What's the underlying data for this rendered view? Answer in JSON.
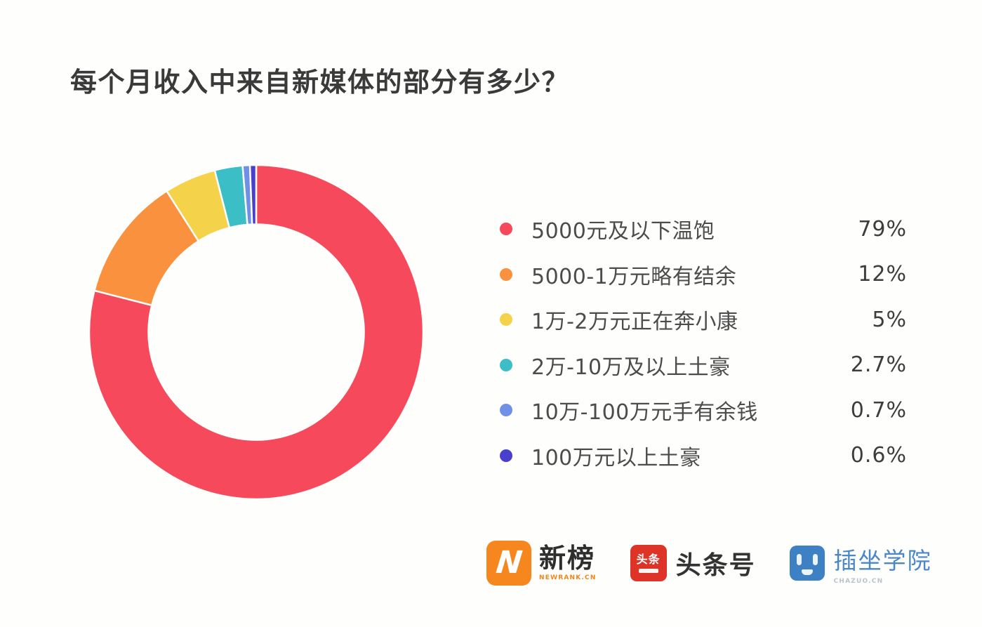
{
  "title": "每个月收入中来自新媒体的部分有多少？",
  "chart_data": {
    "type": "pie",
    "subtype": "donut",
    "title": "每个月收入中来自新媒体的部分有多少？",
    "start_angle_deg": -90,
    "direction": "clockwise",
    "inner_radius_ratio": 0.645,
    "legend_position": "right",
    "categories": [
      "5000元及以下温饱",
      "5000-1万元略有结余",
      "1万-2万元正在奔小康",
      "2万-10万及以上土豪",
      "10万-100万元手有余钱",
      "100万元以上土豪"
    ],
    "values": [
      79,
      12,
      5,
      2.7,
      0.7,
      0.6
    ],
    "series": [
      {
        "label": "5000元及以下温饱",
        "value": 79,
        "display": "79%",
        "color": "#f64a5c"
      },
      {
        "label": "5000-1万元略有结余",
        "value": 12,
        "display": "12%",
        "color": "#f9913f"
      },
      {
        "label": "1万-2万元正在奔小康",
        "value": 5,
        "display": "5%",
        "color": "#f4d34a"
      },
      {
        "label": "2万-10万及以上土豪",
        "value": 2.7,
        "display": "2.7%",
        "color": "#3cbec6"
      },
      {
        "label": "10万-100万元手有余钱",
        "value": 0.7,
        "display": "0.7%",
        "color": "#7090e8"
      },
      {
        "label": "100万元以上土豪",
        "value": 0.6,
        "display": "0.6%",
        "color": "#4840cc"
      }
    ]
  },
  "footer": {
    "logos": [
      {
        "id": "newrank",
        "mark_letter": "N",
        "title": "新榜",
        "subtitle": "NEWRANK.CN",
        "brand_color": "#f6871f",
        "title_color": "#2e2e2e"
      },
      {
        "id": "toutiao",
        "mark_chars": "头条",
        "title": "头条号",
        "brand_color": "#de3428",
        "title_color": "#333333"
      },
      {
        "id": "chazuo",
        "title": "插坐学院",
        "subtitle": "CHAZUO.CN",
        "brand_color": "#3e80c4",
        "title_color": "#4b87c6"
      }
    ]
  }
}
